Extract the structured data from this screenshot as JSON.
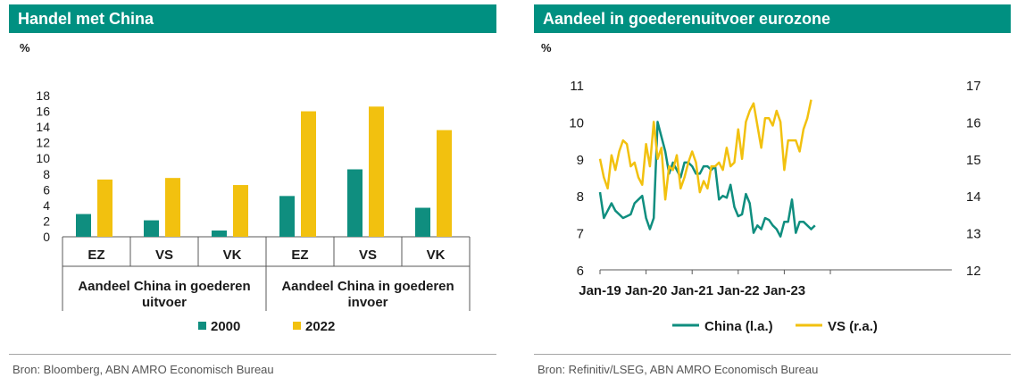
{
  "colors": {
    "accent": "#009081",
    "teal": "#0f8e7f",
    "yellow": "#f2c10f",
    "axis": "#595959",
    "grid": "#d9d9d9"
  },
  "left": {
    "title": "Handel met China",
    "unit": "%",
    "source": "Bron: Bloomberg, ABN AMRO Economisch Bureau"
  },
  "right": {
    "title": "Aandeel in goederenuitvoer eurozone",
    "unit": "%",
    "source": "Bron: Refinitiv/LSEG, ABN AMRO Economisch Bureau"
  },
  "chart_data": [
    {
      "type": "bar",
      "title": "Handel met China",
      "ylabel": "%",
      "ylim": [
        0,
        18
      ],
      "yticks": [
        "0",
        "2",
        "4",
        "6",
        "8",
        "10",
        "12",
        "14",
        "16",
        "18"
      ],
      "categories": [
        "EZ",
        "VS",
        "VK",
        "EZ",
        "VS",
        "VK"
      ],
      "groups": [
        {
          "label": "Aandeel China in goederen uitvoer"
        },
        {
          "label": "Aandeel China in goederen invoer"
        }
      ],
      "series": [
        {
          "name": "2000",
          "color": "#0f8e7f",
          "values": [
            2.9,
            2.1,
            0.8,
            5.2,
            8.6,
            3.7
          ]
        },
        {
          "name": "2022",
          "color": "#f2c10f",
          "values": [
            7.3,
            7.5,
            6.6,
            16.0,
            16.6,
            13.6
          ]
        }
      ],
      "legend_position": "bottom"
    },
    {
      "type": "line",
      "title": "Aandeel in goederenuitvoer eurozone",
      "ylabel": "%",
      "ylim": [
        6,
        11
      ],
      "y2lim": [
        12,
        17
      ],
      "yticks": [
        "6",
        "7",
        "8",
        "9",
        "10",
        "11"
      ],
      "y2ticks": [
        "12",
        "13",
        "14",
        "15",
        "16",
        "17"
      ],
      "xticks": [
        "Jan-19",
        "Jan-20",
        "Jan-21",
        "Jan-22",
        "Jan-23"
      ],
      "x_start": "Jan-19",
      "series": [
        {
          "name": "China (l.a.)",
          "axis": "left",
          "color": "#0f8e7f",
          "values": [
            8.1,
            7.4,
            7.6,
            7.8,
            7.6,
            7.5,
            7.4,
            7.45,
            7.5,
            7.8,
            7.9,
            8.0,
            7.4,
            7.1,
            7.4,
            10.0,
            9.6,
            9.2,
            8.6,
            8.9,
            8.7,
            8.5,
            8.9,
            8.9,
            8.8,
            8.6,
            8.6,
            8.8,
            8.8,
            8.7,
            8.8,
            7.9,
            8.0,
            7.95,
            8.3,
            7.7,
            7.45,
            7.5,
            8.05,
            7.8,
            7.0,
            7.2,
            7.1,
            7.4,
            7.35,
            7.2,
            7.1,
            6.9,
            7.3,
            7.3,
            7.9,
            7.0,
            7.3,
            7.3,
            7.2,
            7.1,
            7.2
          ]
        },
        {
          "name": "VS (r.a.)",
          "axis": "right",
          "color": "#f2c10f",
          "values": [
            15.0,
            14.5,
            14.2,
            15.1,
            14.7,
            15.2,
            15.5,
            15.4,
            14.8,
            14.9,
            14.5,
            14.3,
            15.4,
            14.8,
            16.0,
            15.0,
            15.3,
            13.9,
            14.8,
            14.7,
            15.1,
            14.2,
            14.5,
            14.9,
            15.2,
            14.9,
            14.1,
            14.4,
            14.2,
            14.8,
            14.8,
            14.9,
            14.7,
            15.3,
            14.8,
            14.9,
            15.8,
            15.0,
            16.0,
            16.3,
            16.5,
            15.9,
            15.3,
            16.1,
            16.1,
            15.9,
            16.3,
            16.0,
            14.7,
            15.5,
            15.5,
            15.5,
            15.2,
            15.8,
            16.1,
            16.6
          ]
        }
      ],
      "legend_position": "bottom"
    }
  ]
}
